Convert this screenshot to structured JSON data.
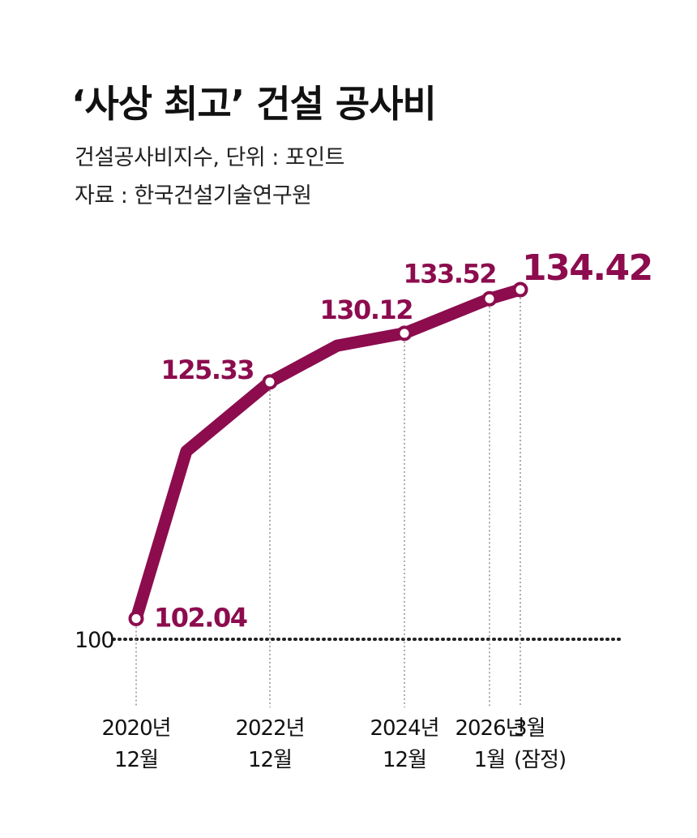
{
  "header": {
    "title": "‘사상 최고’ 건설 공사비",
    "subtitle": "건설공사비지수, 단위 : 포인트",
    "source": "자료 : 한국건설기술연구원"
  },
  "colors": {
    "line": "#8c0c4e",
    "label": "#8c0c4e",
    "axis": "#222222",
    "guide": "#888888"
  },
  "chart_data": {
    "type": "line",
    "title": "‘사상 최고’ 건설 공사비",
    "series": [
      {
        "values": [
          {
            "x": "2020-12",
            "y": 102.04
          },
          {
            "x": "2021-09",
            "y": 118.5
          },
          {
            "x": "2022-12",
            "y": 125.33
          },
          {
            "x": "2023-12",
            "y": 128.9
          },
          {
            "x": "2024-12",
            "y": 130.12
          },
          {
            "x": "2026-01",
            "y": 133.52
          },
          {
            "x": "2026-03",
            "y": 134.42
          }
        ]
      }
    ],
    "data_labels": [
      {
        "x": "2020-12",
        "text": "102.04"
      },
      {
        "x": "2022-12",
        "text": "125.33"
      },
      {
        "x": "2024-12",
        "text": "130.12"
      },
      {
        "x": "2026-01",
        "text": "133.52"
      },
      {
        "x": "2026-03",
        "text": "134.42"
      }
    ],
    "baseline": {
      "value": 100,
      "label": "100"
    },
    "x_ticks": [
      {
        "x": "2020-12",
        "lines": [
          "2020년",
          "12월"
        ]
      },
      {
        "x": "2022-12",
        "lines": [
          "2022년",
          "12월"
        ]
      },
      {
        "x": "2024-12",
        "lines": [
          "2024년",
          "12월"
        ]
      },
      {
        "x": "2026-01",
        "lines": [
          "2026년",
          "1월"
        ]
      },
      {
        "x": "2026-03",
        "lines": [
          "3월",
          "(잠정)"
        ]
      }
    ],
    "ylim": [
      100,
      135
    ],
    "grid": false,
    "legend": "none"
  }
}
